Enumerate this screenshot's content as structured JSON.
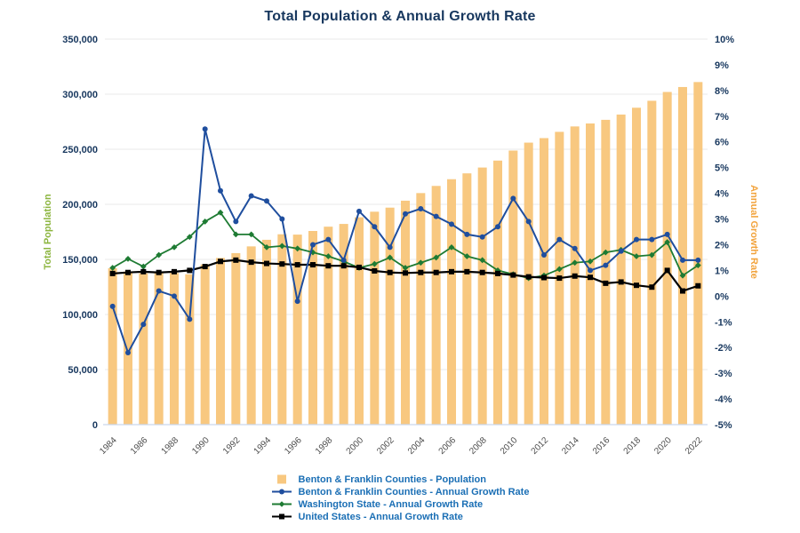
{
  "title": "Total Population & Annual Growth Rate",
  "colors": {
    "title_text": "#17375E",
    "legend_text": "#1B6FB5",
    "gridline": "#E8E8E8",
    "baseline": "#C9D8EC",
    "x_tick_text": "#4D4D4D"
  },
  "chart_data": {
    "type": "bar+line combo",
    "x": [
      1984,
      1985,
      1986,
      1987,
      1988,
      1989,
      1990,
      1991,
      1992,
      1993,
      1994,
      1995,
      1996,
      1997,
      1998,
      1999,
      2000,
      2001,
      2002,
      2003,
      2004,
      2005,
      2006,
      2007,
      2008,
      2009,
      2010,
      2011,
      2012,
      2013,
      2014,
      2015,
      2016,
      2017,
      2018,
      2019,
      2020,
      2021,
      2022
    ],
    "x_tick_labels": [
      "1984",
      "1986",
      "1988",
      "1990",
      "1992",
      "1994",
      "1996",
      "1998",
      "2000",
      "2002",
      "2004",
      "2006",
      "2008",
      "2010",
      "2012",
      "2014",
      "2016",
      "2018",
      "2020",
      "2022"
    ],
    "left_axis": {
      "label": "Total Population",
      "label_color": "#8CB53F",
      "tick_color": "#17375E",
      "min": 0,
      "max": 350000,
      "step": 50000,
      "tick_labels": [
        "350,000",
        "300,000",
        "250,000",
        "200,000",
        "150,000",
        "100,000",
        "50,000",
        "0"
      ]
    },
    "right_axis": {
      "label": "Annual Growth Rate",
      "label_color": "#F2A33C",
      "tick_color": "#17375E",
      "min": -5,
      "max": 10,
      "step": 1,
      "tick_labels": [
        "10%",
        "9%",
        "8%",
        "7%",
        "6%",
        "5%",
        "4%",
        "3%",
        "2%",
        "1%",
        "0%",
        "-1%",
        "-2%",
        "-3%",
        "-4%",
        "-5%"
      ]
    },
    "grid": "horizontal lines at left-axis 50,000 steps",
    "legend_position": "bottom",
    "series": [
      {
        "name": "Benton & Franklin Counties - Population",
        "type": "bar",
        "axis": "left",
        "marker": "bar-swatch",
        "color": "#F8C880",
        "values": [
          142000,
          139000,
          137400,
          137700,
          137700,
          136500,
          145400,
          151300,
          155700,
          161800,
          167800,
          172800,
          172500,
          175800,
          179700,
          182200,
          188200,
          193300,
          197000,
          203300,
          210200,
          216700,
          222800,
          228100,
          233400,
          239700,
          248800,
          256000,
          260100,
          265800,
          270700,
          273400,
          276700,
          281500,
          287700,
          294000,
          302000,
          306500,
          311000
        ]
      },
      {
        "name": "Benton & Franklin Counties - Annual Growth Rate",
        "type": "line",
        "axis": "right",
        "marker": "circle",
        "color": "#1F4E9E",
        "values": [
          -0.4,
          -2.2,
          -1.1,
          0.2,
          0.0,
          -0.9,
          6.5,
          4.1,
          2.9,
          3.9,
          3.7,
          3.0,
          -0.2,
          2.0,
          2.2,
          1.4,
          3.3,
          2.7,
          1.9,
          3.2,
          3.4,
          3.1,
          2.8,
          2.4,
          2.3,
          2.7,
          3.8,
          2.9,
          1.6,
          2.2,
          1.85,
          1.0,
          1.2,
          1.75,
          2.2,
          2.2,
          2.4,
          1.4,
          1.4
        ]
      },
      {
        "name": "Washington State - Annual Growth Rate",
        "type": "line",
        "axis": "right",
        "marker": "diamond",
        "color": "#1E7B33",
        "values": [
          1.1,
          1.45,
          1.15,
          1.6,
          1.9,
          2.3,
          2.9,
          3.25,
          2.4,
          2.4,
          1.9,
          1.95,
          1.85,
          1.7,
          1.55,
          1.35,
          1.1,
          1.25,
          1.5,
          1.1,
          1.3,
          1.5,
          1.9,
          1.55,
          1.4,
          1.0,
          0.85,
          0.7,
          0.8,
          1.05,
          1.3,
          1.35,
          1.7,
          1.8,
          1.55,
          1.6,
          2.1,
          0.8,
          1.2
        ]
      },
      {
        "name": "United States - Annual Growth Rate",
        "type": "line",
        "axis": "right",
        "marker": "square",
        "color": "#000000",
        "values": [
          0.88,
          0.92,
          0.95,
          0.92,
          0.95,
          1.0,
          1.15,
          1.35,
          1.4,
          1.32,
          1.27,
          1.25,
          1.22,
          1.22,
          1.18,
          1.18,
          1.12,
          0.98,
          0.92,
          0.9,
          0.92,
          0.92,
          0.95,
          0.95,
          0.92,
          0.88,
          0.82,
          0.75,
          0.72,
          0.7,
          0.78,
          0.73,
          0.5,
          0.55,
          0.42,
          0.35,
          1.0,
          0.2,
          0.4
        ]
      }
    ]
  }
}
